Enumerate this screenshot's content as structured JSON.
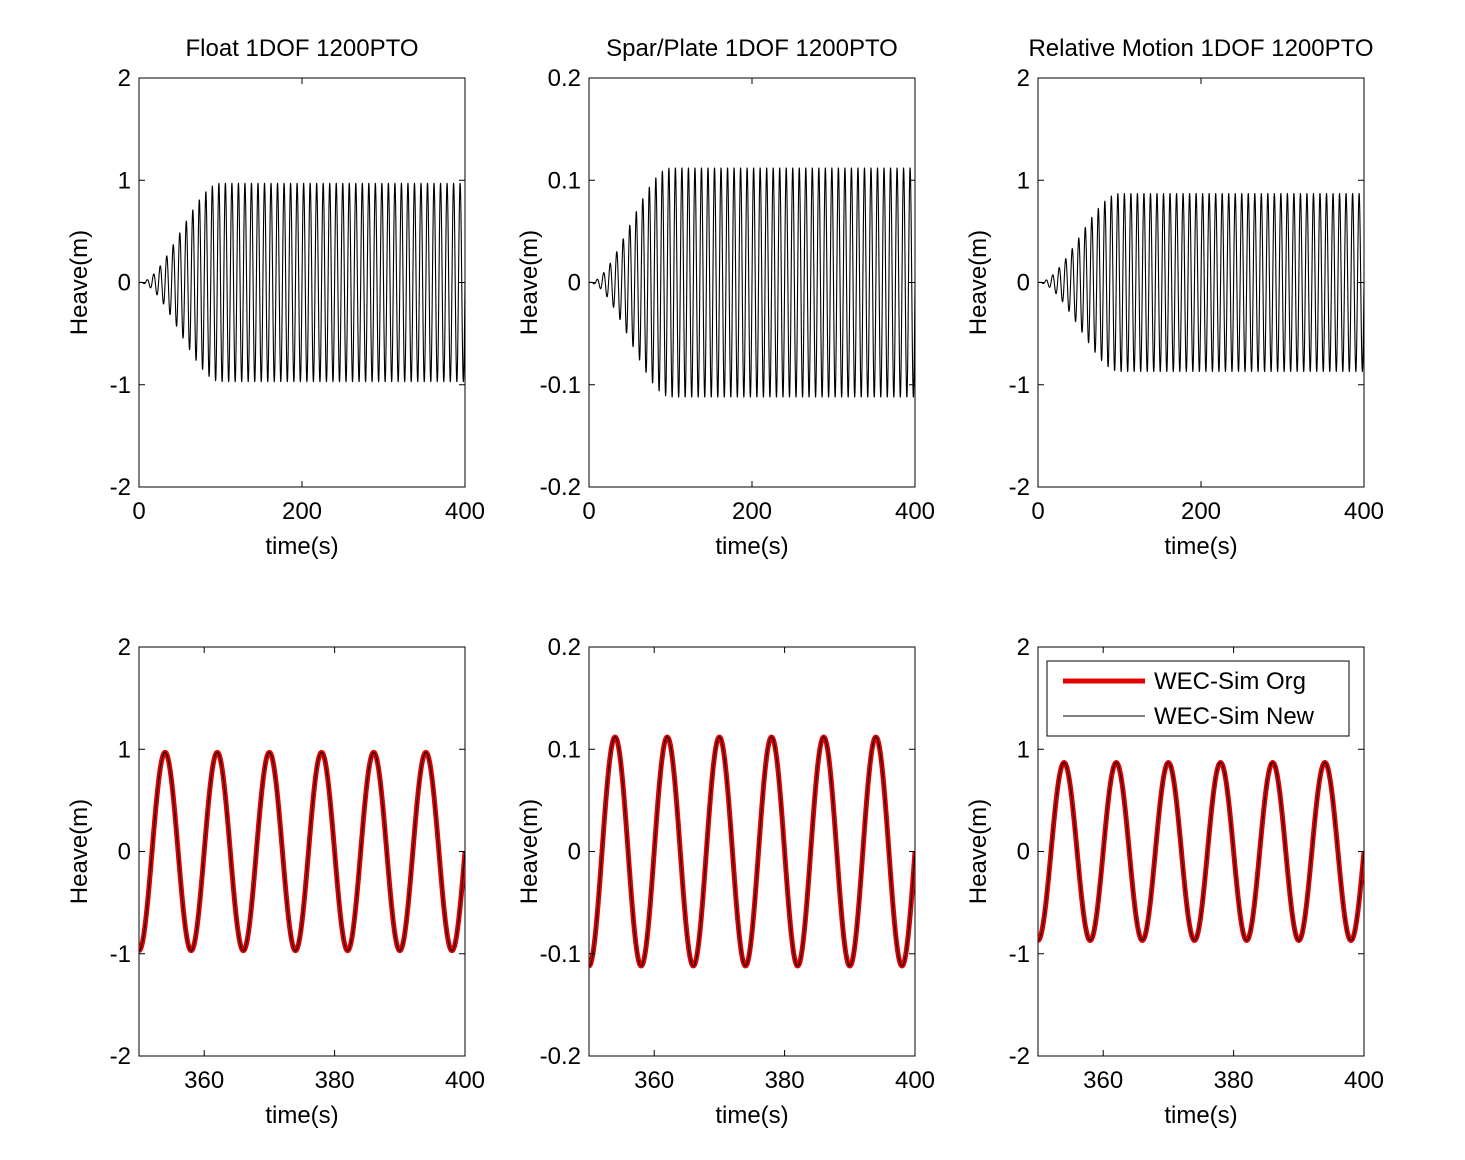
{
  "figure": {
    "background": "#ffffff",
    "legend": {
      "placement": "top",
      "entries": [
        {
          "label": "WEC-Sim Org",
          "color": "#e30000",
          "style": "thick"
        },
        {
          "label": "WEC-Sim New",
          "color": "#000000",
          "style": "thin"
        }
      ]
    }
  },
  "chart_data": [
    {
      "type": "line",
      "title": "Float 1DOF 1200PTO",
      "xlabel": "time(s)",
      "ylabel": "Heave(m)",
      "xlim": [
        0,
        400
      ],
      "ylim": [
        -2,
        2
      ],
      "xticks": [
        0,
        200,
        400
      ],
      "yticks": [
        -2,
        -1,
        0,
        1,
        2
      ],
      "xtick_labels": [
        "0",
        "200",
        "400"
      ],
      "ytick_labels": [
        "-2",
        "-1",
        "0",
        "1",
        "2"
      ],
      "grid": false,
      "series": [
        {
          "color": "#000000",
          "waveform": "sinusoid",
          "amplitude": 0.97,
          "period_s": 8,
          "phase_at_t0": 0.0,
          "ramp_until_s": 100
        }
      ]
    },
    {
      "type": "line",
      "title": "Spar/Plate 1DOF 1200PTO",
      "xlabel": "time(s)",
      "ylabel": "Heave(m)",
      "xlim": [
        0,
        400
      ],
      "ylim": [
        -0.2,
        0.2
      ],
      "xticks": [
        0,
        200,
        400
      ],
      "yticks": [
        -0.2,
        -0.1,
        0,
        0.1,
        0.2
      ],
      "xtick_labels": [
        "0",
        "200",
        "400"
      ],
      "ytick_labels": [
        "-0.2",
        "-0.1",
        "0",
        "0.1",
        "0.2"
      ],
      "grid": false,
      "series": [
        {
          "color": "#000000",
          "waveform": "sinusoid",
          "amplitude": 0.112,
          "period_s": 8,
          "phase_at_t0": 0.0,
          "ramp_until_s": 100
        }
      ]
    },
    {
      "type": "line",
      "title": "Relative Motion 1DOF 1200PTO",
      "xlabel": "time(s)",
      "ylabel": "Heave(m)",
      "xlim": [
        0,
        400
      ],
      "ylim": [
        -2,
        2
      ],
      "xticks": [
        0,
        200,
        400
      ],
      "yticks": [
        -2,
        -1,
        0,
        1,
        2
      ],
      "xtick_labels": [
        "0",
        "200",
        "400"
      ],
      "ytick_labels": [
        "-2",
        "-1",
        "0",
        "1",
        "2"
      ],
      "grid": false,
      "series": [
        {
          "color": "#000000",
          "waveform": "sinusoid",
          "amplitude": 0.87,
          "period_s": 8,
          "phase_at_t0": 0.0,
          "ramp_until_s": 100
        }
      ]
    },
    {
      "type": "line",
      "title": "",
      "xlabel": "time(s)",
      "ylabel": "Heave(m)",
      "xlim": [
        350,
        400
      ],
      "ylim": [
        -2,
        2
      ],
      "xticks": [
        360,
        380,
        400
      ],
      "yticks": [
        -2,
        -1,
        0,
        1,
        2
      ],
      "xtick_labels": [
        "360",
        "380",
        "400"
      ],
      "ytick_labels": [
        "-2",
        "-1",
        "0",
        "1",
        "2"
      ],
      "grid": false,
      "series": [
        {
          "color": "#e30000",
          "waveform": "sinusoid",
          "amplitude": 0.97,
          "period_s": 8,
          "phase_at_t0": 0.0,
          "ramp_until_s": 100
        },
        {
          "color": "#000000",
          "waveform": "sinusoid",
          "amplitude": 0.97,
          "period_s": 8,
          "phase_at_t0": 0.0,
          "ramp_until_s": 100
        }
      ]
    },
    {
      "type": "line",
      "title": "",
      "xlabel": "time(s)",
      "ylabel": "Heave(m)",
      "xlim": [
        350,
        400
      ],
      "ylim": [
        -0.2,
        0.2
      ],
      "xticks": [
        360,
        380,
        400
      ],
      "yticks": [
        -0.2,
        -0.1,
        0,
        0.1,
        0.2
      ],
      "xtick_labels": [
        "360",
        "380",
        "400"
      ],
      "ytick_labels": [
        "-0.2",
        "-0.1",
        "0",
        "0.1",
        "0.2"
      ],
      "grid": false,
      "series": [
        {
          "color": "#e30000",
          "waveform": "sinusoid",
          "amplitude": 0.112,
          "period_s": 8,
          "phase_at_t0": 0.0,
          "ramp_until_s": 100
        },
        {
          "color": "#000000",
          "waveform": "sinusoid",
          "amplitude": 0.112,
          "period_s": 8,
          "phase_at_t0": 0.0,
          "ramp_until_s": 100
        }
      ]
    },
    {
      "type": "line",
      "title": "",
      "xlabel": "time(s)",
      "ylabel": "Heave(m)",
      "xlim": [
        350,
        400
      ],
      "ylim": [
        -2,
        2
      ],
      "xticks": [
        360,
        380,
        400
      ],
      "yticks": [
        -2,
        -1,
        0,
        1,
        2
      ],
      "xtick_labels": [
        "360",
        "380",
        "400"
      ],
      "ytick_labels": [
        "-2",
        "-1",
        "0",
        "1",
        "2"
      ],
      "grid": false,
      "legend": true,
      "series": [
        {
          "color": "#e30000",
          "waveform": "sinusoid",
          "amplitude": 0.87,
          "period_s": 8,
          "phase_at_t0": 0.0,
          "ramp_until_s": 100
        },
        {
          "color": "#000000",
          "waveform": "sinusoid",
          "amplitude": 0.87,
          "period_s": 8,
          "phase_at_t0": 0.0,
          "ramp_until_s": 100
        }
      ]
    }
  ]
}
